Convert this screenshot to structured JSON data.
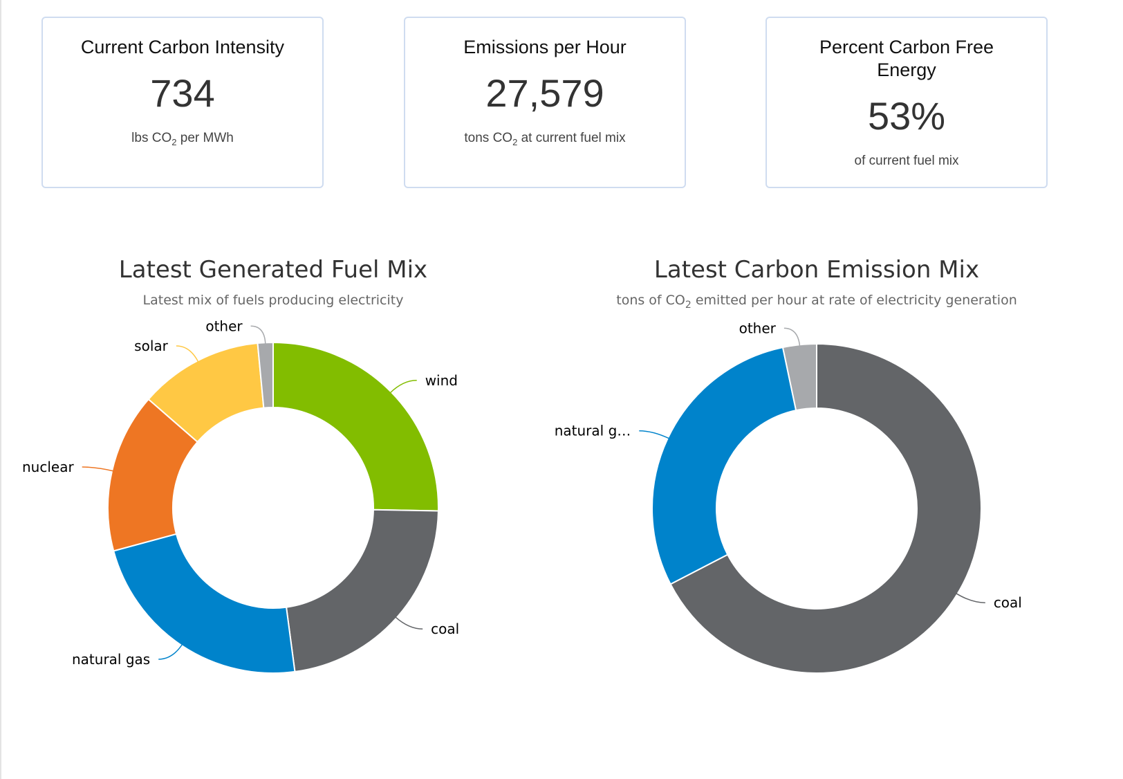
{
  "cards": [
    {
      "title": "Current Carbon Intensity",
      "value": "734",
      "sub_pre": "lbs CO",
      "sub_sub": "2",
      "sub_post": " per MWh"
    },
    {
      "title": "Emissions per Hour",
      "value": "27,579",
      "sub_pre": "tons CO",
      "sub_sub": "2",
      "sub_post": " at current fuel mix"
    },
    {
      "title": "Percent Carbon Free Energy",
      "value": "53%",
      "sub_pre": "of current fuel mix",
      "sub_sub": "",
      "sub_post": ""
    }
  ],
  "chart_data": [
    {
      "type": "pie",
      "title": "Latest Generated Fuel Mix",
      "subtitle": "Latest mix of fuels producing electricity",
      "categories": [
        "wind",
        "coal",
        "natural gas",
        "nuclear",
        "solar",
        "other"
      ],
      "values": [
        25.3,
        22.6,
        22.9,
        15.6,
        12.1,
        1.5
      ],
      "colors": [
        "#82bd00",
        "#636568",
        "#0083cb",
        "#ee7623",
        "#ffc844",
        "#a7a9ac"
      ]
    },
    {
      "type": "pie",
      "title": "Latest Carbon Emission Mix",
      "subtitle_pre": "tons of CO",
      "subtitle_sub": "2",
      "subtitle_post": " emitted per hour at rate of electricity generation",
      "categories": [
        "coal",
        "natural g…",
        "other"
      ],
      "values": [
        67.4,
        29.3,
        3.3
      ],
      "colors": [
        "#636568",
        "#0083cb",
        "#a7a9ac"
      ]
    }
  ]
}
